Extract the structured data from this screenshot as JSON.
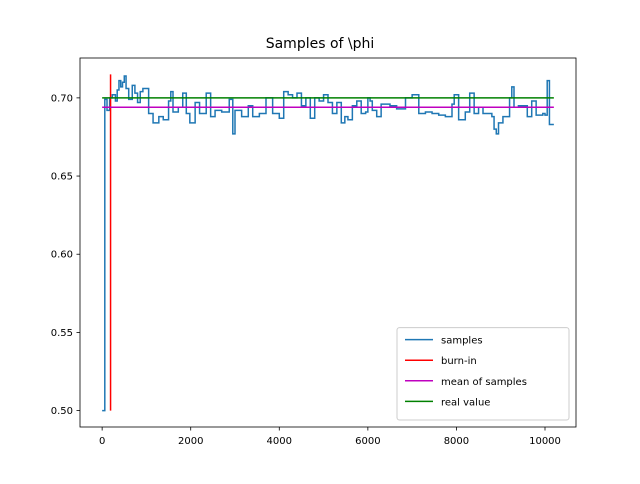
{
  "chart_data": {
    "type": "line",
    "title": "Samples of \\phi",
    "xlabel": "",
    "ylabel": "",
    "xlim": [
      -500,
      10700
    ],
    "ylim": [
      0.4895,
      0.7255
    ],
    "xticks": [
      0,
      2000,
      4000,
      6000,
      8000,
      10000
    ],
    "xtick_labels": [
      "0",
      "2000",
      "4000",
      "6000",
      "8000",
      "10000"
    ],
    "yticks": [
      0.5,
      0.55,
      0.6,
      0.65,
      0.7
    ],
    "ytick_labels": [
      "0.50",
      "0.55",
      "0.60",
      "0.65",
      "0.70"
    ],
    "grid": false,
    "legend_position": "lower right",
    "series": [
      {
        "name": "samples",
        "color": "#1f77b4",
        "step": true,
        "points": [
          [
            0,
            0.5
          ],
          [
            60,
            0.699
          ],
          [
            110,
            0.692
          ],
          [
            170,
            0.7
          ],
          [
            230,
            0.702
          ],
          [
            300,
            0.698
          ],
          [
            340,
            0.705
          ],
          [
            380,
            0.711
          ],
          [
            420,
            0.707
          ],
          [
            460,
            0.71
          ],
          [
            500,
            0.714
          ],
          [
            540,
            0.706
          ],
          [
            600,
            0.699
          ],
          [
            680,
            0.708
          ],
          [
            740,
            0.703
          ],
          [
            800,
            0.697
          ],
          [
            860,
            0.704
          ],
          [
            920,
            0.706
          ],
          [
            1050,
            0.69
          ],
          [
            1150,
            0.684
          ],
          [
            1280,
            0.688
          ],
          [
            1380,
            0.686
          ],
          [
            1500,
            0.698
          ],
          [
            1550,
            0.704
          ],
          [
            1600,
            0.691
          ],
          [
            1720,
            0.694
          ],
          [
            1820,
            0.703
          ],
          [
            1900,
            0.69
          ],
          [
            1980,
            0.684
          ],
          [
            2100,
            0.697
          ],
          [
            2200,
            0.69
          ],
          [
            2350,
            0.703
          ],
          [
            2450,
            0.688
          ],
          [
            2550,
            0.692
          ],
          [
            2700,
            0.691
          ],
          [
            2870,
            0.699
          ],
          [
            2950,
            0.677
          ],
          [
            3000,
            0.692
          ],
          [
            3150,
            0.688
          ],
          [
            3300,
            0.695
          ],
          [
            3400,
            0.688
          ],
          [
            3550,
            0.69
          ],
          [
            3700,
            0.7
          ],
          [
            3850,
            0.69
          ],
          [
            4000,
            0.687
          ],
          [
            4100,
            0.704
          ],
          [
            4200,
            0.702
          ],
          [
            4300,
            0.7
          ],
          [
            4400,
            0.703
          ],
          [
            4500,
            0.695
          ],
          [
            4600,
            0.7
          ],
          [
            4700,
            0.687
          ],
          [
            4800,
            0.7
          ],
          [
            4900,
            0.698
          ],
          [
            5000,
            0.702
          ],
          [
            5100,
            0.697
          ],
          [
            5200,
            0.69
          ],
          [
            5300,
            0.697
          ],
          [
            5400,
            0.684
          ],
          [
            5480,
            0.688
          ],
          [
            5550,
            0.686
          ],
          [
            5650,
            0.695
          ],
          [
            5750,
            0.698
          ],
          [
            5850,
            0.69
          ],
          [
            5950,
            0.691
          ],
          [
            6000,
            0.7
          ],
          [
            6050,
            0.698
          ],
          [
            6100,
            0.692
          ],
          [
            6200,
            0.688
          ],
          [
            6300,
            0.696
          ],
          [
            6500,
            0.695
          ],
          [
            6650,
            0.693
          ],
          [
            6850,
            0.7
          ],
          [
            7000,
            0.702
          ],
          [
            7150,
            0.69
          ],
          [
            7300,
            0.691
          ],
          [
            7450,
            0.69
          ],
          [
            7600,
            0.689
          ],
          [
            7750,
            0.688
          ],
          [
            7900,
            0.696
          ],
          [
            7950,
            0.702
          ],
          [
            8050,
            0.686
          ],
          [
            8200,
            0.691
          ],
          [
            8300,
            0.703
          ],
          [
            8400,
            0.69
          ],
          [
            8500,
            0.694
          ],
          [
            8600,
            0.69
          ],
          [
            8700,
            0.69
          ],
          [
            8800,
            0.688
          ],
          [
            8850,
            0.68
          ],
          [
            8900,
            0.677
          ],
          [
            8950,
            0.684
          ],
          [
            9050,
            0.688
          ],
          [
            9200,
            0.7
          ],
          [
            9250,
            0.707
          ],
          [
            9300,
            0.694
          ],
          [
            9400,
            0.695
          ],
          [
            9600,
            0.688
          ],
          [
            9700,
            0.698
          ],
          [
            9800,
            0.689
          ],
          [
            9950,
            0.69
          ],
          [
            10000,
            0.689
          ],
          [
            10050,
            0.711
          ],
          [
            10100,
            0.683
          ],
          [
            10200,
            0.683
          ]
        ]
      },
      {
        "name": "burn-in",
        "color": "#ff0000",
        "step": false,
        "points": [
          [
            190,
            0.5
          ],
          [
            190,
            0.715
          ]
        ]
      },
      {
        "name": "mean of samples",
        "color": "#bf00bf",
        "step": false,
        "points": [
          [
            0,
            0.694
          ],
          [
            10200,
            0.694
          ]
        ]
      },
      {
        "name": "real value",
        "color": "#008000",
        "step": false,
        "points": [
          [
            0,
            0.7
          ],
          [
            10200,
            0.7
          ]
        ]
      }
    ]
  }
}
